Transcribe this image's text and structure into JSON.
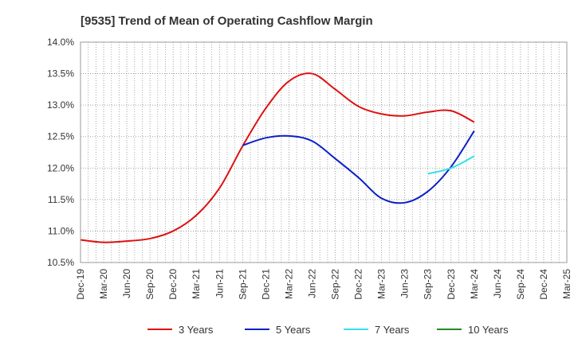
{
  "chart_data": {
    "type": "line",
    "title": "[9535]  Trend of Mean of Operating Cashflow Margin",
    "xlabel": "",
    "ylabel": "",
    "x_ticks": [
      "Dec-19",
      "Mar-20",
      "Jun-20",
      "Sep-20",
      "Dec-20",
      "Mar-21",
      "Jun-21",
      "Sep-21",
      "Dec-21",
      "Mar-22",
      "Jun-22",
      "Sep-22",
      "Dec-22",
      "Mar-23",
      "Jun-23",
      "Sep-23",
      "Dec-23",
      "Mar-24",
      "Jun-24",
      "Sep-24",
      "Dec-24",
      "Mar-25"
    ],
    "y_ticks": [
      "10.5%",
      "11.0%",
      "11.5%",
      "12.0%",
      "12.5%",
      "13.0%",
      "13.5%",
      "14.0%"
    ],
    "ylim": [
      10.5,
      14.0
    ],
    "grid": true,
    "legend_position": "bottom",
    "series": [
      {
        "name": "3 Years",
        "color": "#dd1111",
        "x": [
          "Dec-19",
          "Mar-20",
          "Jun-20",
          "Sep-20",
          "Dec-20",
          "Mar-21",
          "Jun-21",
          "Sep-21",
          "Dec-21",
          "Mar-22",
          "Jun-22",
          "Sep-22",
          "Dec-22",
          "Mar-23",
          "Jun-23",
          "Sep-23",
          "Dec-23",
          "Mar-24"
        ],
        "values": [
          10.86,
          10.82,
          10.84,
          10.88,
          11.0,
          11.25,
          11.68,
          12.35,
          12.95,
          13.38,
          13.5,
          13.25,
          12.98,
          12.86,
          12.83,
          12.89,
          12.91,
          12.73
        ]
      },
      {
        "name": "5 Years",
        "color": "#0a1fc8",
        "x": [
          "Sep-21",
          "Dec-21",
          "Mar-22",
          "Jun-22",
          "Sep-22",
          "Dec-22",
          "Mar-23",
          "Jun-23",
          "Sep-23",
          "Dec-23",
          "Mar-24"
        ],
        "values": [
          12.36,
          12.48,
          12.51,
          12.43,
          12.15,
          11.85,
          11.52,
          11.45,
          11.63,
          12.02,
          12.59
        ]
      },
      {
        "name": "7 Years",
        "color": "#33e0ee",
        "x": [
          "Sep-23",
          "Dec-23",
          "Mar-24"
        ],
        "values": [
          11.91,
          12.0,
          12.19
        ]
      },
      {
        "name": "10 Years",
        "color": "#228b22",
        "x": [],
        "values": []
      }
    ]
  }
}
